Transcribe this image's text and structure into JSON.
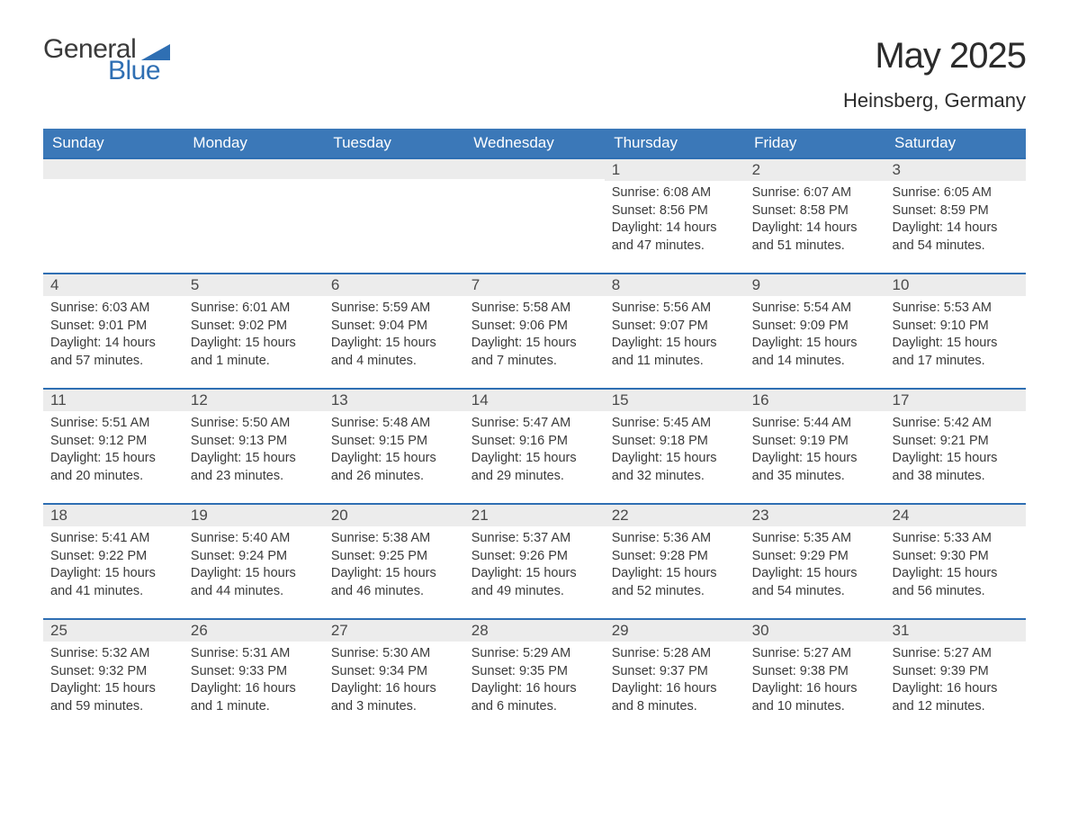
{
  "logo": {
    "text_general": "General",
    "text_blue": "Blue",
    "flag_color": "#2f6fb3"
  },
  "header": {
    "month_title": "May 2025",
    "location": "Heinsberg, Germany"
  },
  "colors": {
    "header_bg": "#3b78b8",
    "header_text": "#ffffff",
    "day_number_bg": "#ececec",
    "day_border_top": "#2f6fb3",
    "body_text": "#3a3a3a",
    "page_bg": "#ffffff"
  },
  "typography": {
    "month_title_fontsize": 40,
    "location_fontsize": 22,
    "day_header_fontsize": 17,
    "day_number_fontsize": 17,
    "day_info_fontsize": 14.5,
    "font_family": "Arial, Helvetica, sans-serif"
  },
  "calendar": {
    "type": "table",
    "columns": [
      "Sunday",
      "Monday",
      "Tuesday",
      "Wednesday",
      "Thursday",
      "Friday",
      "Saturday"
    ],
    "weeks": [
      [
        null,
        null,
        null,
        null,
        {
          "day": "1",
          "sunrise": "6:08 AM",
          "sunset": "8:56 PM",
          "daylight": "14 hours and 47 minutes."
        },
        {
          "day": "2",
          "sunrise": "6:07 AM",
          "sunset": "8:58 PM",
          "daylight": "14 hours and 51 minutes."
        },
        {
          "day": "3",
          "sunrise": "6:05 AM",
          "sunset": "8:59 PM",
          "daylight": "14 hours and 54 minutes."
        }
      ],
      [
        {
          "day": "4",
          "sunrise": "6:03 AM",
          "sunset": "9:01 PM",
          "daylight": "14 hours and 57 minutes."
        },
        {
          "day": "5",
          "sunrise": "6:01 AM",
          "sunset": "9:02 PM",
          "daylight": "15 hours and 1 minute."
        },
        {
          "day": "6",
          "sunrise": "5:59 AM",
          "sunset": "9:04 PM",
          "daylight": "15 hours and 4 minutes."
        },
        {
          "day": "7",
          "sunrise": "5:58 AM",
          "sunset": "9:06 PM",
          "daylight": "15 hours and 7 minutes."
        },
        {
          "day": "8",
          "sunrise": "5:56 AM",
          "sunset": "9:07 PM",
          "daylight": "15 hours and 11 minutes."
        },
        {
          "day": "9",
          "sunrise": "5:54 AM",
          "sunset": "9:09 PM",
          "daylight": "15 hours and 14 minutes."
        },
        {
          "day": "10",
          "sunrise": "5:53 AM",
          "sunset": "9:10 PM",
          "daylight": "15 hours and 17 minutes."
        }
      ],
      [
        {
          "day": "11",
          "sunrise": "5:51 AM",
          "sunset": "9:12 PM",
          "daylight": "15 hours and 20 minutes."
        },
        {
          "day": "12",
          "sunrise": "5:50 AM",
          "sunset": "9:13 PM",
          "daylight": "15 hours and 23 minutes."
        },
        {
          "day": "13",
          "sunrise": "5:48 AM",
          "sunset": "9:15 PM",
          "daylight": "15 hours and 26 minutes."
        },
        {
          "day": "14",
          "sunrise": "5:47 AM",
          "sunset": "9:16 PM",
          "daylight": "15 hours and 29 minutes."
        },
        {
          "day": "15",
          "sunrise": "5:45 AM",
          "sunset": "9:18 PM",
          "daylight": "15 hours and 32 minutes."
        },
        {
          "day": "16",
          "sunrise": "5:44 AM",
          "sunset": "9:19 PM",
          "daylight": "15 hours and 35 minutes."
        },
        {
          "day": "17",
          "sunrise": "5:42 AM",
          "sunset": "9:21 PM",
          "daylight": "15 hours and 38 minutes."
        }
      ],
      [
        {
          "day": "18",
          "sunrise": "5:41 AM",
          "sunset": "9:22 PM",
          "daylight": "15 hours and 41 minutes."
        },
        {
          "day": "19",
          "sunrise": "5:40 AM",
          "sunset": "9:24 PM",
          "daylight": "15 hours and 44 minutes."
        },
        {
          "day": "20",
          "sunrise": "5:38 AM",
          "sunset": "9:25 PM",
          "daylight": "15 hours and 46 minutes."
        },
        {
          "day": "21",
          "sunrise": "5:37 AM",
          "sunset": "9:26 PM",
          "daylight": "15 hours and 49 minutes."
        },
        {
          "day": "22",
          "sunrise": "5:36 AM",
          "sunset": "9:28 PM",
          "daylight": "15 hours and 52 minutes."
        },
        {
          "day": "23",
          "sunrise": "5:35 AM",
          "sunset": "9:29 PM",
          "daylight": "15 hours and 54 minutes."
        },
        {
          "day": "24",
          "sunrise": "5:33 AM",
          "sunset": "9:30 PM",
          "daylight": "15 hours and 56 minutes."
        }
      ],
      [
        {
          "day": "25",
          "sunrise": "5:32 AM",
          "sunset": "9:32 PM",
          "daylight": "15 hours and 59 minutes."
        },
        {
          "day": "26",
          "sunrise": "5:31 AM",
          "sunset": "9:33 PM",
          "daylight": "16 hours and 1 minute."
        },
        {
          "day": "27",
          "sunrise": "5:30 AM",
          "sunset": "9:34 PM",
          "daylight": "16 hours and 3 minutes."
        },
        {
          "day": "28",
          "sunrise": "5:29 AM",
          "sunset": "9:35 PM",
          "daylight": "16 hours and 6 minutes."
        },
        {
          "day": "29",
          "sunrise": "5:28 AM",
          "sunset": "9:37 PM",
          "daylight": "16 hours and 8 minutes."
        },
        {
          "day": "30",
          "sunrise": "5:27 AM",
          "sunset": "9:38 PM",
          "daylight": "16 hours and 10 minutes."
        },
        {
          "day": "31",
          "sunrise": "5:27 AM",
          "sunset": "9:39 PM",
          "daylight": "16 hours and 12 minutes."
        }
      ]
    ],
    "labels": {
      "sunrise_prefix": "Sunrise: ",
      "sunset_prefix": "Sunset: ",
      "daylight_prefix": "Daylight: "
    }
  }
}
